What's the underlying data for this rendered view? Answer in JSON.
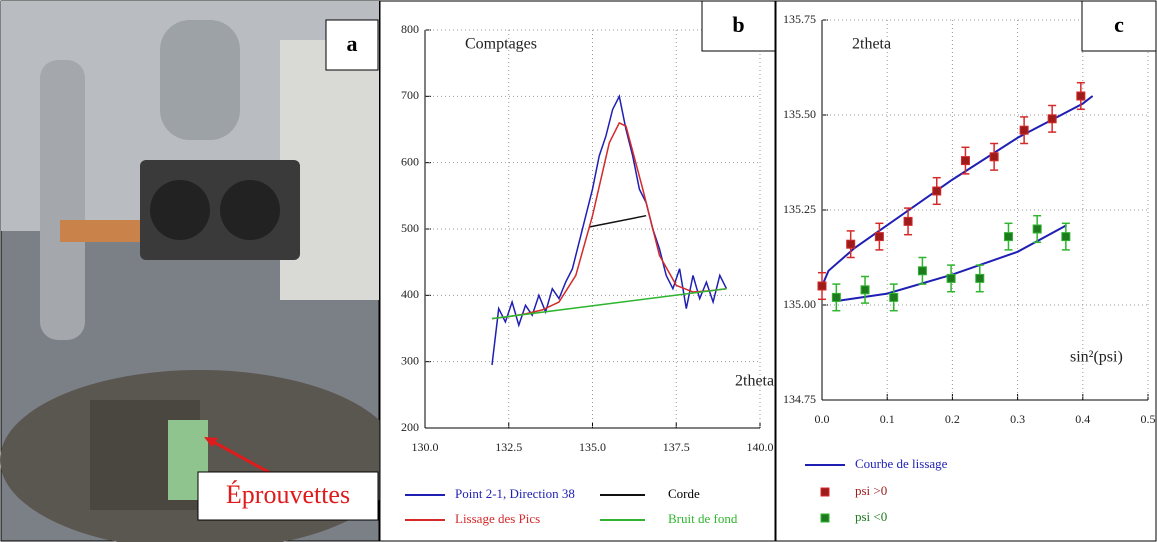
{
  "photo": {
    "letter": "a",
    "label": "Éprouvettes"
  },
  "chart_data": [
    {
      "type": "line",
      "letter": "b",
      "y_label": "Comptages",
      "x_label": "2theta",
      "xlim": [
        130,
        140
      ],
      "xticks": [
        {
          "value": 130,
          "label": "130.0"
        },
        {
          "value": 132.5,
          "label": "132.5"
        },
        {
          "value": 135,
          "label": "135.0"
        },
        {
          "value": 137.5,
          "label": "137.5"
        },
        {
          "value": 140,
          "label": "140.0"
        }
      ],
      "ylim": [
        200,
        800
      ],
      "yticks": [
        200,
        300,
        400,
        500,
        600,
        700,
        800
      ],
      "grid": true,
      "series": [
        {
          "name": "Point 2-1, Direction 38",
          "color": "#1f1fb4",
          "x": [
            132.0,
            132.2,
            132.4,
            132.6,
            132.8,
            133.0,
            133.2,
            133.4,
            133.6,
            133.8,
            134.0,
            134.2,
            134.4,
            134.6,
            134.8,
            135.0,
            135.2,
            135.4,
            135.6,
            135.8,
            136.0,
            136.2,
            136.4,
            136.6,
            136.8,
            137.0,
            137.2,
            137.4,
            137.6,
            137.8,
            138.0,
            138.2,
            138.4,
            138.6,
            138.8,
            139.0
          ],
          "values": [
            295,
            380,
            360,
            390,
            355,
            385,
            370,
            400,
            375,
            410,
            395,
            420,
            440,
            480,
            520,
            560,
            610,
            640,
            680,
            700,
            650,
            610,
            560,
            540,
            500,
            470,
            430,
            410,
            440,
            380,
            430,
            395,
            420,
            390,
            430,
            410
          ]
        },
        {
          "name": "Corde",
          "color": "#111111",
          "x": [
            134.9,
            136.6
          ],
          "values": [
            503,
            520
          ]
        },
        {
          "name": "Lissage des Pics",
          "color": "#d42a2a",
          "x": [
            132,
            132.5,
            133,
            133.5,
            134,
            134.5,
            135,
            135.5,
            135.8,
            136,
            136.5,
            137,
            137.5,
            138,
            138.5,
            139
          ],
          "values": [
            365,
            368,
            372,
            378,
            390,
            430,
            520,
            630,
            660,
            655,
            560,
            460,
            415,
            405,
            407,
            410
          ]
        },
        {
          "name": "Bruit de fond",
          "color": "#2fb52f",
          "x": [
            132,
            139
          ],
          "values": [
            365,
            410
          ]
        }
      ]
    },
    {
      "type": "scatter",
      "letter": "c",
      "y_label": "2theta",
      "x_label": "sin²(psi)",
      "xlim": [
        0,
        0.5
      ],
      "xticks": [
        {
          "value": 0,
          "label": "0.0"
        },
        0.1,
        0.2,
        0.3,
        0.4,
        0.5
      ],
      "ylim": [
        134.75,
        135.75
      ],
      "yticks": [
        134.75,
        {
          "value": 135,
          "label": "135.00"
        },
        135.25,
        {
          "value": 135.5,
          "label": "135.50"
        },
        135.75
      ],
      "grid": true,
      "series": [
        {
          "name": "Courbe de lissage",
          "type": "line",
          "color": "#1f1fb4",
          "x": [
            0,
            0.01,
            0.05,
            0.1,
            0.2,
            0.3,
            0.4,
            0.415,
            null,
            0.02,
            0.1,
            0.2,
            0.3,
            0.375
          ],
          "values": [
            135.05,
            135.09,
            135.15,
            135.21,
            135.33,
            135.44,
            135.53,
            135.55,
            null,
            135.01,
            135.03,
            135.08,
            135.14,
            135.21
          ]
        },
        {
          "name": "psi >0",
          "type": "errorbar",
          "color": "#9e1b1b",
          "error_color": "#d42a2a",
          "x": [
            0,
            0.044,
            0.088,
            0.132,
            0.176,
            0.22,
            0.264,
            0.31,
            0.353,
            0.397
          ],
          "values": [
            135.05,
            135.16,
            135.18,
            135.22,
            135.3,
            135.38,
            135.39,
            135.46,
            135.49,
            135.55
          ],
          "errors": [
            0.035,
            0.035,
            0.035,
            0.035,
            0.035,
            0.035,
            0.035,
            0.035,
            0.035,
            0.035
          ]
        },
        {
          "name": "psi <0",
          "type": "errorbar",
          "color": "#1e7a1e",
          "error_color": "#2fb52f",
          "x": [
            0.022,
            0.066,
            0.11,
            0.154,
            0.198,
            0.242,
            0.286,
            0.33,
            0.374
          ],
          "values": [
            135.02,
            135.04,
            135.02,
            135.09,
            135.07,
            135.07,
            135.18,
            135.2,
            135.18
          ],
          "errors": [
            0.035,
            0.035,
            0.035,
            0.035,
            0.035,
            0.035,
            0.035,
            0.035,
            0.035
          ]
        }
      ]
    }
  ]
}
